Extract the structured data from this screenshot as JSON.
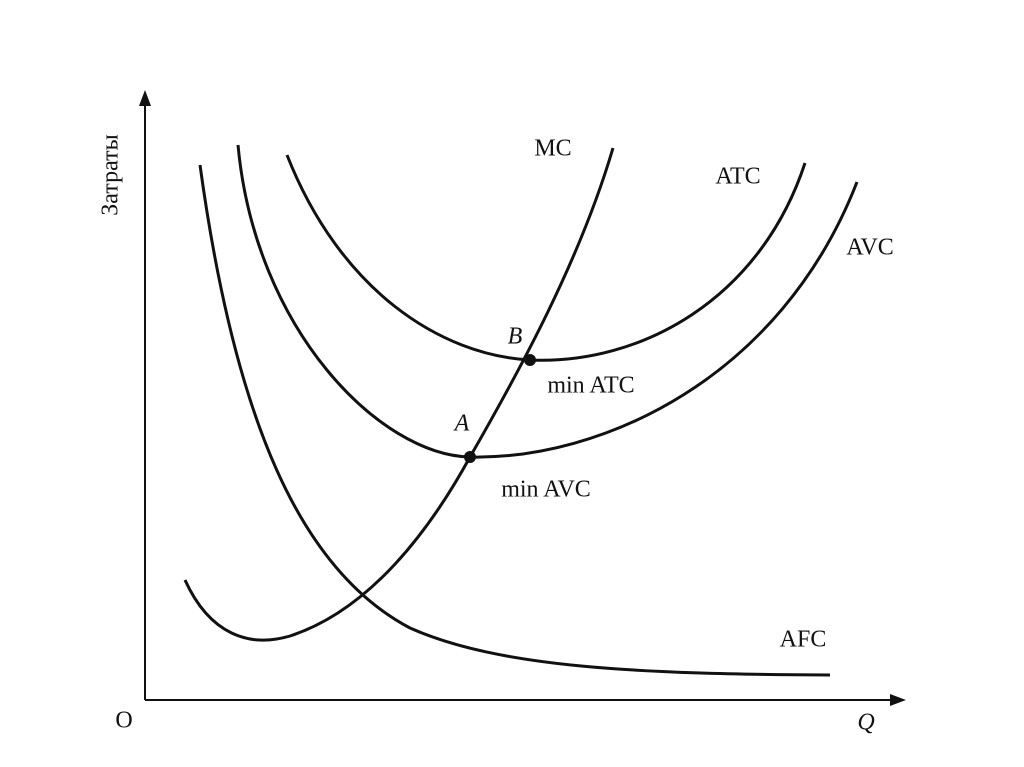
{
  "axes": {
    "y_label": "Затраты",
    "origin": "O",
    "x_label": "Q"
  },
  "curves": [
    {
      "label": "MC"
    },
    {
      "label": "ATC"
    },
    {
      "label": "AVC"
    },
    {
      "label": "AFC"
    }
  ],
  "points": [
    {
      "label": "B",
      "caption": "min ATC"
    },
    {
      "label": "A",
      "caption": "min AVC"
    }
  ]
}
